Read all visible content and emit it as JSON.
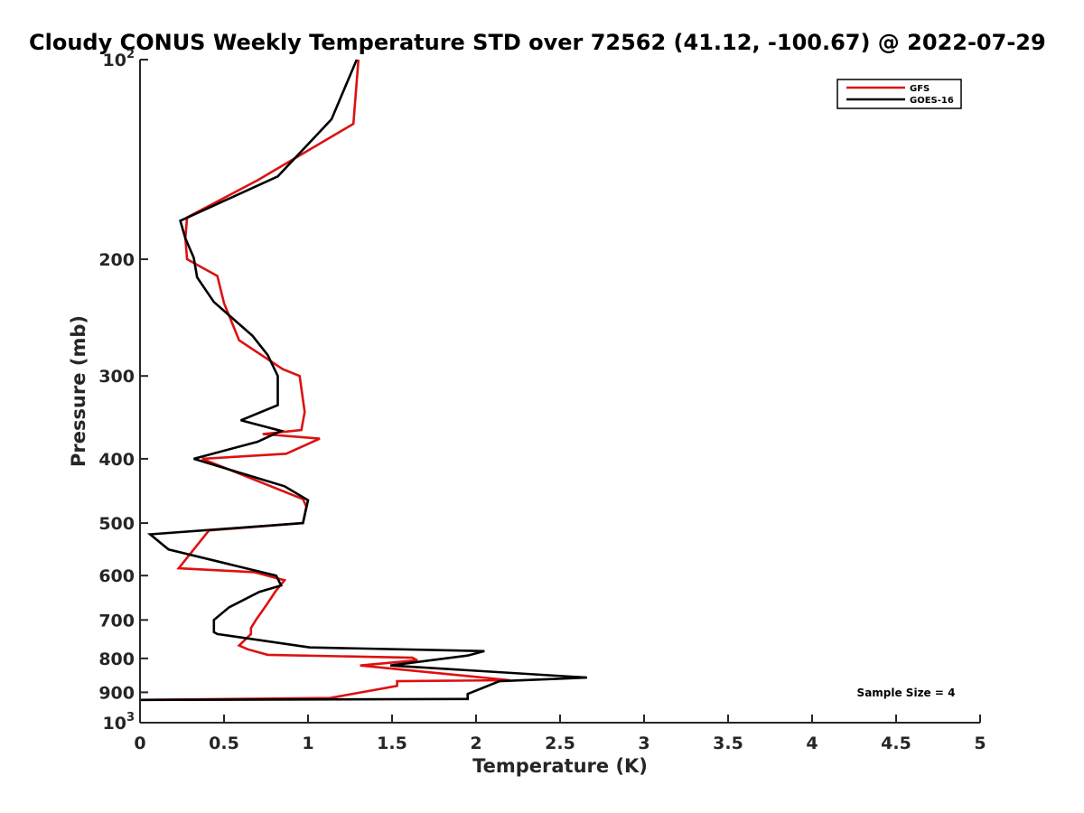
{
  "chart_data": {
    "type": "line",
    "title": "Cloudy CONUS Weekly Temperature STD over 72562 (41.12, -100.67) @ 2022-07-29",
    "xlabel": "Temperature (K)",
    "ylabel": "Pressure (mb)",
    "xlim": [
      0,
      5
    ],
    "ylim": [
      100,
      1000
    ],
    "y_scale": "log",
    "y_reversed": true,
    "x_ticks": [
      "0",
      "0.5",
      "1",
      "1.5",
      "2",
      "2.5",
      "3",
      "3.5",
      "4",
      "4.5",
      "5"
    ],
    "y_ticks": [
      {
        "value": 200,
        "label": "200"
      },
      {
        "value": 300,
        "label": "300"
      },
      {
        "value": 400,
        "label": "400"
      },
      {
        "value": 500,
        "label": "500"
      },
      {
        "value": 600,
        "label": "600"
      },
      {
        "value": 700,
        "label": "700"
      },
      {
        "value": 800,
        "label": "800"
      },
      {
        "value": 900,
        "label": "900"
      }
    ],
    "y_tick_ends": [
      {
        "value": 100,
        "base": "10",
        "exp": "2"
      },
      {
        "value": 1000,
        "base": "10",
        "exp": "3"
      }
    ],
    "grid": false,
    "legend_position": "top-right",
    "annotation": "Sample Size = 4",
    "series": [
      {
        "name": "GFS",
        "color": "#dd1111",
        "x": [
          1.3,
          1.27,
          0.7,
          0.28,
          0.27,
          0.28,
          0.46,
          0.5,
          0.59,
          0.85,
          0.95,
          0.98,
          0.96,
          0.73,
          1.07,
          0.87,
          0.37,
          0.97,
          0.99,
          0.97,
          0.41,
          0.23,
          0.68,
          0.86,
          0.81,
          0.75,
          0.69,
          0.66,
          0.66,
          0.59,
          0.64,
          0.76,
          1.62,
          1.65,
          1.31,
          2.2,
          1.53,
          1.53,
          1.13,
          0.0
        ],
        "y": [
          100,
          125,
          152,
          173,
          186,
          200,
          212,
          233,
          265,
          293,
          300,
          340,
          362,
          367,
          373,
          393,
          400,
          460,
          472,
          500,
          513,
          585,
          593,
          610,
          632,
          666,
          700,
          720,
          735,
          765,
          775,
          790,
          798,
          805,
          820,
          863,
          866,
          880,
          918,
          924
        ]
      },
      {
        "name": "GOES-16",
        "color": "#000000",
        "x": [
          1.29,
          1.14,
          0.82,
          0.24,
          0.27,
          0.32,
          0.34,
          0.44,
          0.67,
          0.76,
          0.82,
          0.82,
          0.6,
          0.84,
          0.7,
          0.32,
          0.86,
          1.0,
          0.97,
          0.06,
          0.17,
          0.81,
          0.84,
          0.71,
          0.53,
          0.44,
          0.44,
          0.46,
          1.01,
          2.05,
          1.95,
          1.49,
          2.66,
          2.14,
          1.95,
          1.95,
          0.0
        ],
        "y": [
          100,
          123,
          150,
          175,
          186,
          199,
          213,
          232,
          261,
          279,
          300,
          332,
          350,
          363,
          377,
          400,
          440,
          462,
          500,
          520,
          548,
          600,
          621,
          635,
          670,
          700,
          730,
          735,
          770,
          780,
          792,
          820,
          855,
          866,
          905,
          921,
          924
        ]
      }
    ]
  }
}
